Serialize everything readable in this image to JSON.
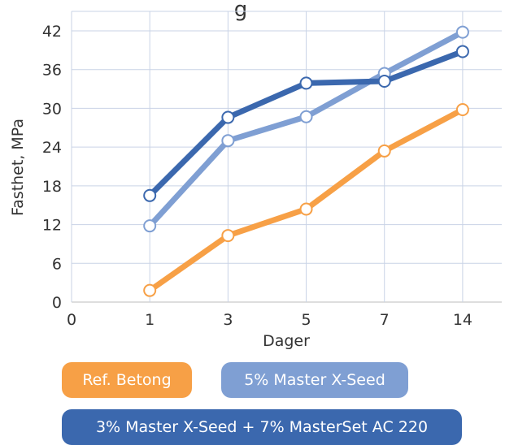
{
  "chart_data": {
    "type": "line",
    "title": "g",
    "xlabel": "Dager",
    "ylabel": "Fasthet, MPa",
    "categories": [
      "1",
      "3",
      "5",
      "7",
      "14"
    ],
    "x_tick_labels": [
      "0",
      "1",
      "3",
      "5",
      "7",
      "14"
    ],
    "y_ticks": [
      0,
      6,
      12,
      18,
      24,
      30,
      36,
      42
    ],
    "ylim": [
      0,
      45
    ],
    "grid": true,
    "legend_position": "bottom",
    "series": [
      {
        "name": "Ref. Betong",
        "color": "#F7A046",
        "values": [
          1.8,
          10.3,
          14.4,
          23.4,
          29.8
        ]
      },
      {
        "name": "5% Master X-Seed",
        "color": "#7F9FD3",
        "values": [
          11.8,
          25.0,
          28.7,
          35.4,
          41.8
        ]
      },
      {
        "name": "3% Master X-Seed + 7% MasterSet AC 220",
        "color": "#3B68AE",
        "values": [
          16.5,
          28.6,
          33.9,
          34.2,
          38.8
        ]
      }
    ]
  }
}
